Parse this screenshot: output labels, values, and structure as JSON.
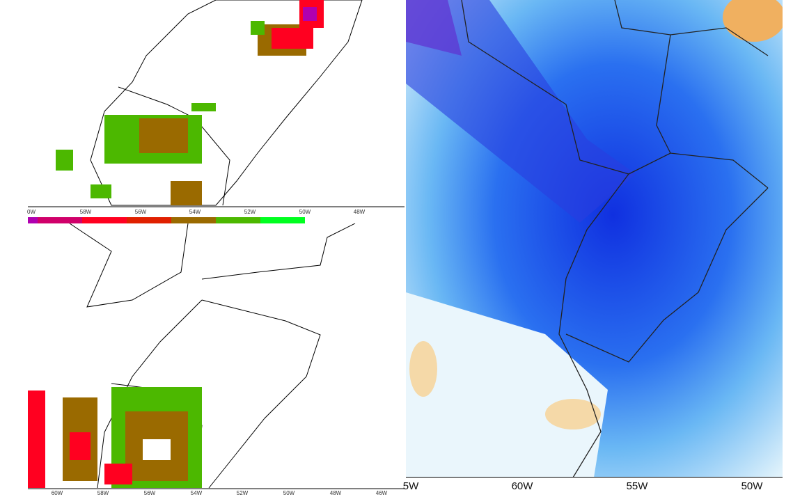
{
  "top_left_map": {
    "lon_ticks": [
      "0W",
      "58W",
      "56W",
      "54W",
      "52W",
      "50W",
      "48W"
    ],
    "colorbar": [
      "#b000b0",
      "#d0006a",
      "#ff0020",
      "#e02000",
      "#9a6a00",
      "#4cb800",
      "#00ff20"
    ]
  },
  "bottom_left_map": {
    "lon_ticks": [
      "60W",
      "58W",
      "56W",
      "54W",
      "52W",
      "50W",
      "48W",
      "46W"
    ]
  },
  "right_map": {
    "lon_ticks": [
      "5W",
      "60W",
      "55W",
      "50W"
    ]
  }
}
